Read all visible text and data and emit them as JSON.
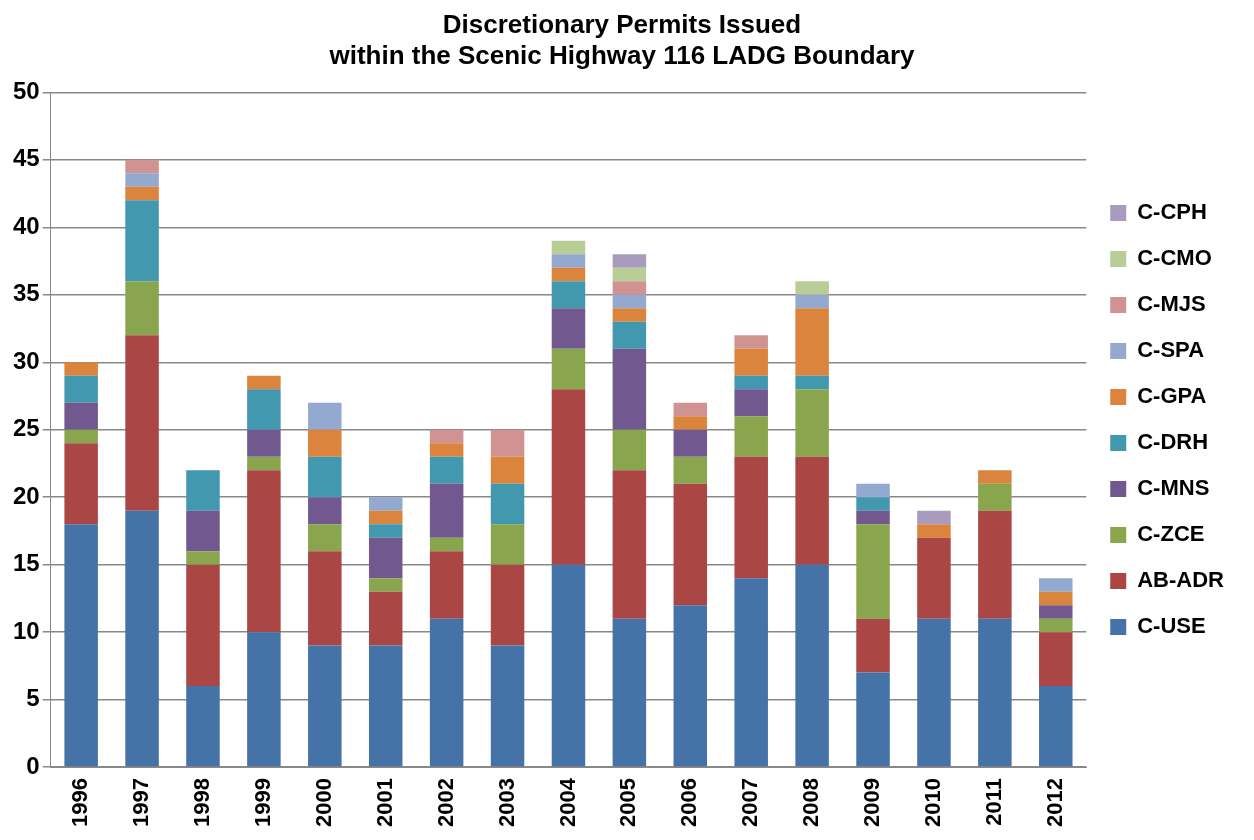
{
  "chart_data": {
    "type": "bar",
    "stacked": true,
    "title": "Discretionary Permits Issued\nwithin the Scenic Highway 116 LADG Boundary",
    "categories": [
      "1996",
      "1997",
      "1998",
      "1999",
      "2000",
      "2001",
      "2002",
      "2003",
      "2004",
      "2005",
      "2006",
      "2007",
      "2008",
      "2009",
      "2010",
      "2011",
      "2012"
    ],
    "series": [
      {
        "name": "C-USE",
        "color": "#4572a7",
        "values": [
          18,
          19,
          6,
          10,
          9,
          9,
          11,
          9,
          15,
          11,
          12,
          14,
          15,
          7,
          11,
          11,
          6
        ]
      },
      {
        "name": "AB-ADR",
        "color": "#aa4643",
        "values": [
          6,
          13,
          9,
          12,
          7,
          4,
          5,
          6,
          13,
          11,
          9,
          9,
          8,
          4,
          6,
          8,
          4
        ]
      },
      {
        "name": "C-ZCE",
        "color": "#89a54e",
        "values": [
          1,
          4,
          1,
          1,
          2,
          1,
          1,
          3,
          3,
          3,
          2,
          3,
          5,
          7,
          0,
          2,
          1
        ]
      },
      {
        "name": "C-MNS",
        "color": "#71588f",
        "values": [
          2,
          0,
          3,
          2,
          2,
          3,
          4,
          0,
          3,
          6,
          2,
          2,
          0,
          1,
          0,
          0,
          1
        ]
      },
      {
        "name": "C-DRH",
        "color": "#4198af",
        "values": [
          2,
          6,
          3,
          3,
          3,
          1,
          2,
          3,
          2,
          2,
          0,
          1,
          1,
          1,
          0,
          0,
          0
        ]
      },
      {
        "name": "C-GPA",
        "color": "#db843d",
        "values": [
          1,
          1,
          0,
          1,
          2,
          1,
          1,
          2,
          1,
          1,
          1,
          2,
          5,
          0,
          1,
          1,
          1
        ]
      },
      {
        "name": "C-SPA",
        "color": "#93a9cf",
        "values": [
          0,
          1,
          0,
          0,
          2,
          1,
          0,
          0,
          1,
          1,
          0,
          0,
          1,
          1,
          0,
          0,
          1
        ]
      },
      {
        "name": "C-MJS",
        "color": "#d19392",
        "values": [
          0,
          1,
          0,
          0,
          0,
          0,
          1,
          2,
          0,
          1,
          1,
          1,
          0,
          0,
          0,
          0,
          0
        ]
      },
      {
        "name": "C-CMO",
        "color": "#b9cd96",
        "values": [
          0,
          0,
          0,
          0,
          0,
          0,
          0,
          0,
          1,
          1,
          0,
          0,
          1,
          0,
          0,
          0,
          0
        ]
      },
      {
        "name": "C-CPH",
        "color": "#a99bbd",
        "values": [
          0,
          0,
          0,
          0,
          0,
          0,
          0,
          0,
          0,
          1,
          0,
          0,
          0,
          0,
          1,
          0,
          0
        ]
      }
    ],
    "ylim": [
      0,
      50
    ],
    "yticks": [
      0,
      5,
      10,
      15,
      20,
      25,
      30,
      35,
      40,
      45,
      50
    ],
    "grid": "y",
    "legend": "right"
  }
}
